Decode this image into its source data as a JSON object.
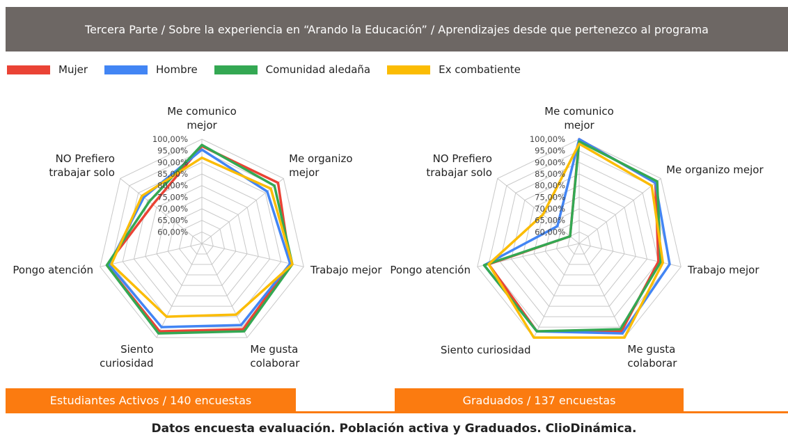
{
  "header": {
    "title": "Tercera Parte / Sobre la experiencia en “Arando la Educación” / Aprendizajes desde que pertenezco al programa"
  },
  "footer": {
    "text": "Datos encuesta evaluación. Población activa y Graduados. ClioDinámica."
  },
  "chart_data": [
    {
      "type": "radar",
      "title": "Estudiantes Activos / 140 encuestas",
      "categories": [
        "Me comunico mejor",
        "Me organizo mejor",
        "Trabajo mejor",
        "Me gusta colaborar",
        "Siento curiosidad",
        "Pongo atención",
        "NO Prefiero trabajar solo"
      ],
      "ylim": [
        55,
        100
      ],
      "yticks": [
        {
          "value": 60,
          "label": "60,00%"
        },
        {
          "value": 65,
          "label": "65,00%"
        },
        {
          "value": 70,
          "label": "70,00%"
        },
        {
          "value": 75,
          "label": "75,00%"
        },
        {
          "value": 80,
          "label": "80,00%"
        },
        {
          "value": 85,
          "label": "85,00%"
        },
        {
          "value": 90,
          "label": "90,00%"
        },
        {
          "value": 95,
          "label": "95,00%"
        },
        {
          "value": 100,
          "label": "100,00%"
        }
      ],
      "grid": true,
      "series": [
        {
          "name": "Mujer",
          "color": "#ea4335",
          "values": [
            97,
            97,
            94,
            96,
            97,
            97,
            82
          ]
        },
        {
          "name": "Hombre",
          "color": "#4285f4",
          "values": [
            95.5,
            91,
            94,
            94,
            95,
            96,
            87
          ]
        },
        {
          "name": "Comunidad aledaña",
          "color": "#34a853",
          "values": [
            97.5,
            95,
            95,
            97,
            98,
            97,
            84
          ]
        },
        {
          "name": "Ex combatiente",
          "color": "#fbbc04",
          "values": [
            92,
            93,
            95,
            89,
            90,
            95,
            88
          ]
        }
      ]
    },
    {
      "type": "radar",
      "title": "Graduados / 137 encuestas",
      "categories": [
        "Me comunico mejor",
        "Me organizo mejor",
        "Trabajo mejor",
        "Me gusta colaborar",
        "Siento curiosidad",
        "Pongo atención",
        "NO Prefiero trabajar solo"
      ],
      "ylim": [
        55,
        100
      ],
      "yticks": [
        {
          "value": 60,
          "label": "60,00%"
        },
        {
          "value": 65,
          "label": "65,00%"
        },
        {
          "value": 70,
          "label": "70,00%"
        },
        {
          "value": 75,
          "label": "75,00%"
        },
        {
          "value": 80,
          "label": "80,00%"
        },
        {
          "value": 85,
          "label": "85,00%"
        },
        {
          "value": 90,
          "label": "90,00%"
        },
        {
          "value": 95,
          "label": "95,00%"
        },
        {
          "value": 100,
          "label": "100,00%"
        }
      ],
      "grid": true,
      "series": [
        {
          "name": "Mujer",
          "color": "#ea4335",
          "values": [
            100,
            97,
            90,
            97,
            97,
            95,
            60
          ]
        },
        {
          "name": "Hombre",
          "color": "#4285f4",
          "values": [
            100,
            97,
            95,
            98,
            97,
            97,
            67
          ]
        },
        {
          "name": "Comunidad aledaña",
          "color": "#34a853",
          "values": [
            99,
            98,
            91,
            96,
            97,
            97,
            60
          ]
        },
        {
          "name": "Ex combatiente",
          "color": "#fbbc04",
          "values": [
            98,
            95,
            92,
            100,
            100,
            95,
            75
          ]
        }
      ]
    }
  ]
}
